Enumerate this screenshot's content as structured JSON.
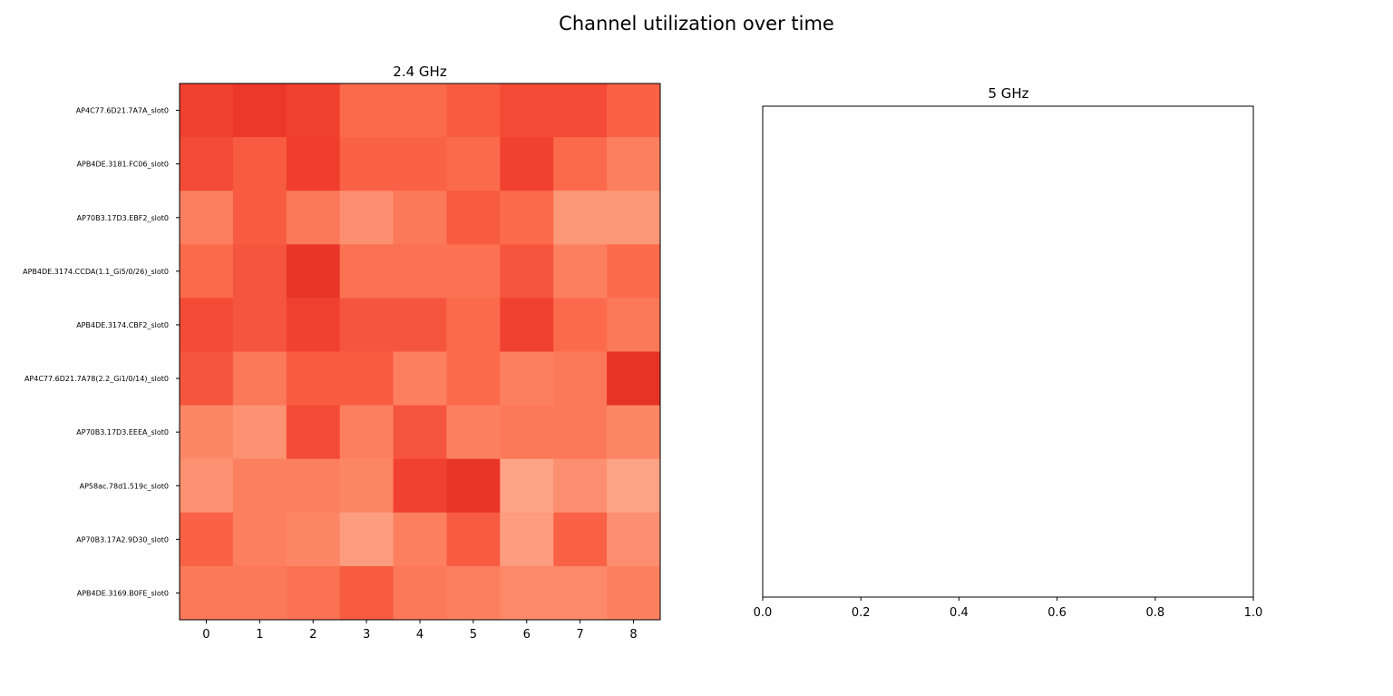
{
  "figure": {
    "title": "Channel utilization over time"
  },
  "chart_data": [
    {
      "type": "heatmap",
      "title": "2.4 GHz",
      "x": [
        0,
        1,
        2,
        3,
        4,
        5,
        6,
        7,
        8
      ],
      "rows": [
        "AP4C77.6D21.7A7A_slot0",
        "APB4DE.3181.FC06_slot0",
        "AP70B3.17D3.EBF2_slot0",
        "APB4DE.3174.CCDA(1.1_Gi5/0/26)_slot0",
        "APB4DE.3174.CBF2_slot0",
        "AP4C77.6D21.7A78(2.2_Gi1/0/14)_slot0",
        "AP70B3.17D3.EEEA_slot0",
        "AP58ac.78d1.519c_slot0",
        "AP70B3.17A2.9D30_slot0",
        "APB4DE.3169.B0FE_slot0"
      ],
      "values": [
        [
          0.8,
          0.86,
          0.8,
          0.55,
          0.55,
          0.64,
          0.74,
          0.74,
          0.6
        ],
        [
          0.74,
          0.64,
          0.82,
          0.6,
          0.6,
          0.55,
          0.8,
          0.55,
          0.4
        ],
        [
          0.4,
          0.64,
          0.46,
          0.3,
          0.46,
          0.64,
          0.55,
          0.24,
          0.24
        ],
        [
          0.55,
          0.68,
          0.88,
          0.5,
          0.5,
          0.5,
          0.68,
          0.4,
          0.55
        ],
        [
          0.74,
          0.68,
          0.8,
          0.68,
          0.68,
          0.55,
          0.8,
          0.55,
          0.46
        ],
        [
          0.68,
          0.46,
          0.64,
          0.64,
          0.4,
          0.55,
          0.4,
          0.46,
          0.9
        ],
        [
          0.36,
          0.28,
          0.74,
          0.4,
          0.68,
          0.4,
          0.46,
          0.46,
          0.36
        ],
        [
          0.28,
          0.4,
          0.4,
          0.36,
          0.8,
          0.88,
          0.16,
          0.3,
          0.16
        ],
        [
          0.6,
          0.4,
          0.36,
          0.2,
          0.4,
          0.64,
          0.2,
          0.6,
          0.3
        ],
        [
          0.46,
          0.46,
          0.5,
          0.64,
          0.46,
          0.4,
          0.34,
          0.34,
          0.4
        ]
      ],
      "colormap": "Reds",
      "color_range": [
        0,
        1
      ]
    },
    {
      "type": "scatter",
      "title": "5 GHz",
      "x": [],
      "y": [],
      "xlim": [
        0,
        1
      ],
      "xticks": [
        "0.0",
        "0.2",
        "0.4",
        "0.6",
        "0.8",
        "1.0"
      ],
      "yaxis_visible": false
    }
  ]
}
